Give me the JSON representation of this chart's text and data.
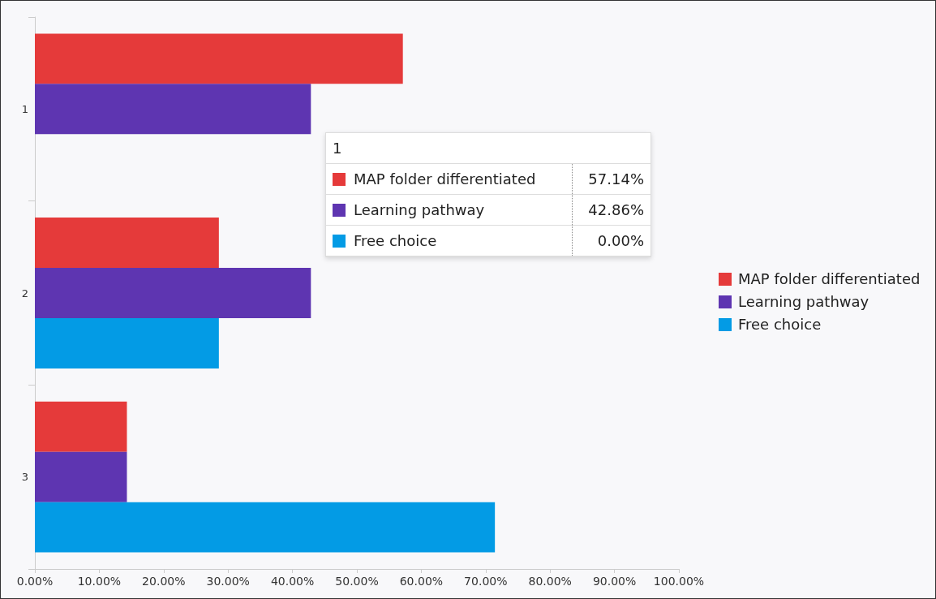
{
  "chart_data": {
    "type": "bar",
    "orientation": "horizontal",
    "categories": [
      "1",
      "2",
      "3"
    ],
    "series": [
      {
        "name": "MAP folder differentiated",
        "color": "#e53a3a",
        "values": [
          57.14,
          28.57,
          14.29
        ]
      },
      {
        "name": "Learning pathway",
        "color": "#5e35b1",
        "values": [
          42.86,
          42.86,
          14.29
        ]
      },
      {
        "name": "Free choice",
        "color": "#039be5",
        "values": [
          0,
          28.57,
          71.43
        ]
      }
    ],
    "xlim": [
      0,
      100
    ],
    "xticks": [
      {
        "value": 0,
        "label": "0.00%"
      },
      {
        "value": 10,
        "label": "10.00%"
      },
      {
        "value": 20,
        "label": "20.00%"
      },
      {
        "value": 30,
        "label": "30.00%"
      },
      {
        "value": 40,
        "label": "40.00%"
      },
      {
        "value": 50,
        "label": "50.00%"
      },
      {
        "value": 60,
        "label": "60.00%"
      },
      {
        "value": 70,
        "label": "70.00%"
      },
      {
        "value": 80,
        "label": "80.00%"
      },
      {
        "value": 90,
        "label": "90.00%"
      },
      {
        "value": 100,
        "label": "100.00%"
      }
    ],
    "grid": false,
    "legend": "right",
    "annotations": [
      "57.14%",
      "42.86%",
      "0.00%"
    ]
  }
}
